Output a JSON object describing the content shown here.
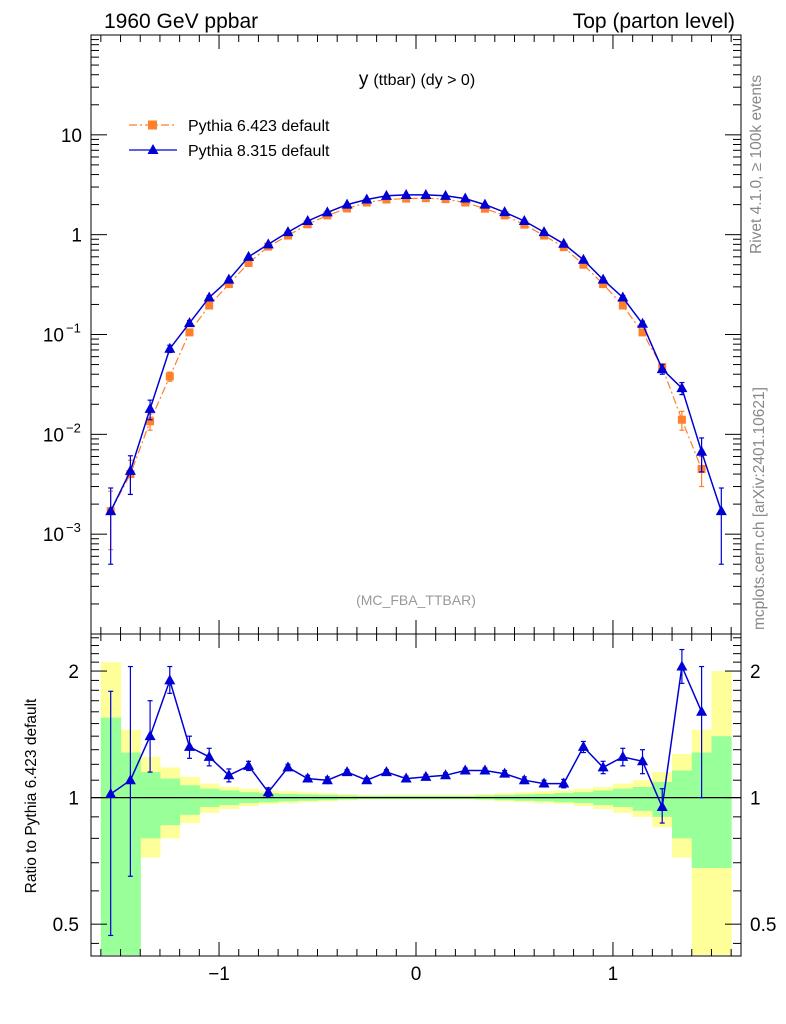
{
  "header": {
    "left": "1960 GeV ppbar",
    "right": "Top (parton level)"
  },
  "side": {
    "rivet": "Rivet 4.1.0, ≥ 100k events",
    "mcplots": "mcplots.cern.ch [arXiv:2401.10621]"
  },
  "colors": {
    "p6": "#ff7f2a",
    "p8": "#0000d4",
    "band_outer": "#ffff99",
    "band_inner": "#99ff99"
  },
  "chart_data": [
    {
      "type": "line",
      "title": "y (ttbar) (dy > 0)",
      "title_main": "y",
      "title_rest": "(ttbar) (dy > 0)",
      "watermark": "(MC_FBA_TTBAR)",
      "xlabel": "",
      "ylabel": "",
      "yscale": "log",
      "xlim": [
        -1.65,
        1.65
      ],
      "ylim": [
        0.0001,
        100
      ],
      "y_ticks": [
        {
          "value": 10,
          "base": "10",
          "exp": ""
        },
        {
          "value": 1,
          "base": "1",
          "exp": ""
        },
        {
          "value": 0.1,
          "base": "10",
          "exp": "−1"
        },
        {
          "value": 0.01,
          "base": "10",
          "exp": "−2"
        },
        {
          "value": 0.001,
          "base": "10",
          "exp": "−3"
        }
      ],
      "x": [
        -1.55,
        -1.45,
        -1.35,
        -1.25,
        -1.15,
        -1.05,
        -0.95,
        -0.85,
        -0.75,
        -0.65,
        -0.55,
        -0.45,
        -0.35,
        -0.25,
        -0.15,
        -0.05,
        0.05,
        0.15,
        0.25,
        0.35,
        0.45,
        0.55,
        0.65,
        0.75,
        0.85,
        0.95,
        1.05,
        1.15,
        1.25,
        1.35,
        1.45,
        1.55
      ],
      "legend": [
        {
          "label": "Pythia 6.423 default"
        },
        {
          "label": "Pythia 8.315 default"
        }
      ],
      "series": [
        {
          "name": "Pythia 6.423 default",
          "marker": "square",
          "style": "dashdot",
          "values": [
            0.0017,
            0.004,
            0.0135,
            0.038,
            0.105,
            0.195,
            0.32,
            0.52,
            0.76,
            0.98,
            1.27,
            1.56,
            1.83,
            2.1,
            2.25,
            2.3,
            2.32,
            2.27,
            2.1,
            1.82,
            1.56,
            1.26,
            0.98,
            0.75,
            0.5,
            0.32,
            0.195,
            0.105,
            0.047,
            0.014,
            0.0045,
            null
          ],
          "errors": [
            0.001,
            0.0015,
            0.0025,
            0.004,
            0.006,
            0.008,
            0.012,
            0.015,
            0.015,
            0.018,
            0.02,
            0.022,
            0.024,
            0.025,
            0.026,
            0.026,
            0.026,
            0.026,
            0.025,
            0.024,
            0.022,
            0.02,
            0.018,
            0.015,
            0.015,
            0.012,
            0.008,
            0.006,
            0.004,
            0.003,
            0.0015,
            null
          ]
        },
        {
          "name": "Pythia 8.315 default",
          "marker": "triangle",
          "style": "solid",
          "values": [
            0.0017,
            0.0043,
            0.018,
            0.072,
            0.13,
            0.235,
            0.355,
            0.6,
            0.8,
            1.06,
            1.37,
            1.67,
            2.0,
            2.25,
            2.45,
            2.5,
            2.5,
            2.45,
            2.3,
            2.0,
            1.68,
            1.37,
            1.06,
            0.81,
            0.56,
            0.355,
            0.235,
            0.128,
            0.045,
            0.029,
            0.0067,
            0.0017
          ],
          "errors": [
            0.0012,
            0.0018,
            0.004,
            0.006,
            0.008,
            0.01,
            0.013,
            0.016,
            0.017,
            0.02,
            0.022,
            0.024,
            0.026,
            0.028,
            0.029,
            0.03,
            0.03,
            0.029,
            0.028,
            0.026,
            0.024,
            0.022,
            0.02,
            0.017,
            0.016,
            0.013,
            0.01,
            0.008,
            0.005,
            0.004,
            0.0025,
            0.0012
          ]
        }
      ]
    },
    {
      "type": "line",
      "title": "",
      "xlabel": "",
      "ylabel": "Ratio to Pythia 6.423 default",
      "yscale": "log",
      "xlim": [
        -1.65,
        1.65
      ],
      "ylim": [
        0.42,
        2.45
      ],
      "reference": 1,
      "y_ticks": [
        {
          "value": 2,
          "label": "2"
        },
        {
          "value": 1,
          "label": "1"
        },
        {
          "value": 0.5,
          "label": "0.5"
        }
      ],
      "x_ticks": [
        {
          "value": -1,
          "label": "−1"
        },
        {
          "value": 0,
          "label": "0"
        },
        {
          "value": 1,
          "label": "1"
        }
      ],
      "x_edges": [
        -1.6,
        -1.5,
        -1.4,
        -1.3,
        -1.2,
        -1.1,
        -1.0,
        -0.9,
        -0.8,
        -0.7,
        -0.6,
        -0.5,
        -0.4,
        -0.3,
        -0.2,
        -0.1,
        0.0,
        0.1,
        0.2,
        0.3,
        0.4,
        0.5,
        0.6,
        0.7,
        0.8,
        0.9,
        1.0,
        1.1,
        1.2,
        1.3,
        1.4,
        1.5,
        1.6
      ],
      "band_outer": {
        "low": [
          0.3,
          0.3,
          0.72,
          0.8,
          0.87,
          0.92,
          0.94,
          0.955,
          0.965,
          0.97,
          0.975,
          0.98,
          0.985,
          0.99,
          0.99,
          0.99,
          0.99,
          0.99,
          0.99,
          0.985,
          0.98,
          0.975,
          0.97,
          0.965,
          0.955,
          0.94,
          0.92,
          0.9,
          0.85,
          0.72,
          0.3,
          0.3
        ],
        "high": [
          2.1,
          1.45,
          1.25,
          1.18,
          1.12,
          1.08,
          1.06,
          1.05,
          1.04,
          1.035,
          1.03,
          1.025,
          1.02,
          1.015,
          1.015,
          1.015,
          1.015,
          1.015,
          1.015,
          1.02,
          1.025,
          1.03,
          1.035,
          1.04,
          1.05,
          1.06,
          1.08,
          1.1,
          1.15,
          1.27,
          1.45,
          2.0
        ]
      },
      "band_inner": {
        "low": [
          0.38,
          0.38,
          0.8,
          0.86,
          0.91,
          0.95,
          0.96,
          0.97,
          0.975,
          0.98,
          0.983,
          0.986,
          0.99,
          0.993,
          0.993,
          0.993,
          0.993,
          0.993,
          0.993,
          0.99,
          0.986,
          0.983,
          0.98,
          0.975,
          0.97,
          0.96,
          0.95,
          0.93,
          0.9,
          0.8,
          0.68,
          0.68
        ],
        "high": [
          1.55,
          1.28,
          1.15,
          1.11,
          1.07,
          1.05,
          1.04,
          1.03,
          1.025,
          1.02,
          1.018,
          1.015,
          1.012,
          1.01,
          1.01,
          1.01,
          1.01,
          1.01,
          1.01,
          1.012,
          1.015,
          1.018,
          1.02,
          1.025,
          1.03,
          1.04,
          1.05,
          1.06,
          1.09,
          1.16,
          1.28,
          1.4
        ]
      },
      "x": [
        -1.55,
        -1.45,
        -1.35,
        -1.25,
        -1.15,
        -1.05,
        -0.95,
        -0.85,
        -0.75,
        -0.65,
        -0.55,
        -0.45,
        -0.35,
        -0.25,
        -0.15,
        -0.05,
        0.05,
        0.15,
        0.25,
        0.35,
        0.45,
        0.55,
        0.65,
        0.75,
        0.85,
        0.95,
        1.05,
        1.15,
        1.25,
        1.35,
        1.45,
        1.55
      ],
      "series": [
        {
          "name": "Pythia 8.315 default",
          "values": [
            1.02,
            1.1,
            1.4,
            1.9,
            1.32,
            1.25,
            1.13,
            1.19,
            1.03,
            1.18,
            1.11,
            1.1,
            1.15,
            1.1,
            1.15,
            1.11,
            1.12,
            1.13,
            1.16,
            1.16,
            1.14,
            1.1,
            1.08,
            1.08,
            1.32,
            1.18,
            1.25,
            1.22,
            0.95,
            2.05,
            1.6,
            null
          ],
          "err_low": [
            0.55,
            0.45,
            0.25,
            0.13,
            0.08,
            0.06,
            0.04,
            0.03,
            0.025,
            0.02,
            0.02,
            0.02,
            0.015,
            0.015,
            0.015,
            0.015,
            0.015,
            0.015,
            0.015,
            0.015,
            0.02,
            0.02,
            0.02,
            0.025,
            0.04,
            0.04,
            0.06,
            0.08,
            0.08,
            0.18,
            0.6,
            null
          ],
          "err_high": [
            0.77,
            0.95,
            0.3,
            0.15,
            0.08,
            0.06,
            0.04,
            0.03,
            0.025,
            0.02,
            0.02,
            0.02,
            0.015,
            0.015,
            0.015,
            0.015,
            0.015,
            0.015,
            0.015,
            0.015,
            0.02,
            0.02,
            0.02,
            0.025,
            0.04,
            0.04,
            0.06,
            0.08,
            0.1,
            0.2,
            0.45,
            null
          ]
        }
      ]
    }
  ]
}
